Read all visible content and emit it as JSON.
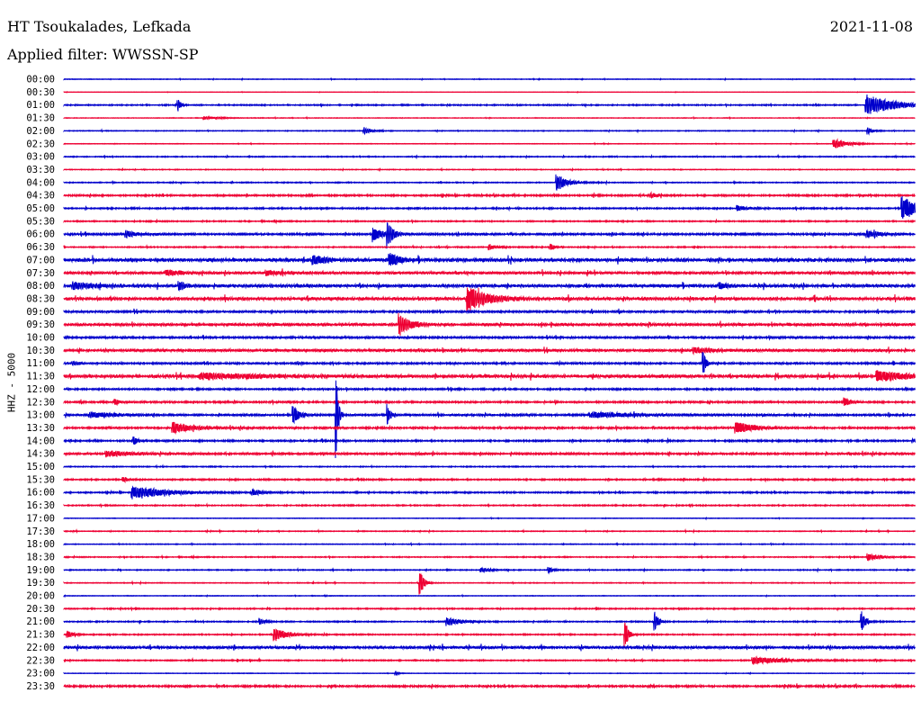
{
  "header": {
    "station": "HT Tsoukalades, Lefkada",
    "filter": "Applied filter: WWSSN-SP",
    "date": "2021-11-08"
  },
  "colors": {
    "even_hour": "#0000cc",
    "half_hour": "#ee0033",
    "text": "#000000"
  },
  "chart_data": {
    "type": "line",
    "title": "HT Tsoukalades, Lefkada",
    "ylabel": "HHZ - 5000",
    "row_labels": [
      "00:00",
      "00:30",
      "01:00",
      "01:30",
      "02:00",
      "02:30",
      "03:00",
      "03:30",
      "04:00",
      "04:30",
      "05:00",
      "05:30",
      "06:00",
      "06:30",
      "07:00",
      "07:30",
      "08:00",
      "08:30",
      "09:00",
      "09:30",
      "10:00",
      "10:30",
      "11:00",
      "11:30",
      "12:00",
      "12:30",
      "13:00",
      "13:30",
      "14:00",
      "14:30",
      "15:00",
      "15:30",
      "16:00",
      "16:30",
      "17:00",
      "17:30",
      "18:00",
      "18:30",
      "19:00",
      "19:30",
      "20:00",
      "20:30",
      "21:00",
      "21:30",
      "22:00",
      "22:30",
      "23:00",
      "23:30"
    ],
    "x_unit": "fraction of 30-minute trace",
    "noise_level": [
      0.3,
      0.2,
      0.6,
      0.3,
      0.4,
      0.3,
      0.5,
      0.4,
      0.5,
      0.8,
      0.7,
      0.6,
      1.0,
      0.6,
      1.6,
      1.2,
      1.4,
      1.4,
      1.0,
      1.3,
      1.0,
      1.2,
      0.9,
      1.4,
      0.8,
      0.9,
      1.0,
      0.9,
      0.8,
      1.0,
      0.5,
      0.7,
      0.7,
      0.6,
      0.3,
      0.4,
      0.4,
      0.5,
      0.5,
      0.4,
      0.3,
      0.6,
      0.6,
      0.6,
      1.2,
      0.6,
      0.3,
      0.9
    ],
    "events": [
      {
        "row": 2,
        "x": 0.134,
        "amp": 7,
        "dur": 0.004
      },
      {
        "row": 2,
        "x": 0.943,
        "amp": 12,
        "dur": 0.03
      },
      {
        "row": 3,
        "x": 0.165,
        "amp": 2,
        "dur": 0.02
      },
      {
        "row": 4,
        "x": 0.353,
        "amp": 4,
        "dur": 0.008
      },
      {
        "row": 4,
        "x": 0.945,
        "amp": 4,
        "dur": 0.006
      },
      {
        "row": 5,
        "x": 0.905,
        "amp": 6,
        "dur": 0.015
      },
      {
        "row": 8,
        "x": 0.579,
        "amp": 10,
        "dur": 0.012
      },
      {
        "row": 9,
        "x": 0.69,
        "amp": 3,
        "dur": 0.006
      },
      {
        "row": 10,
        "x": 0.792,
        "amp": 3,
        "dur": 0.01
      },
      {
        "row": 10,
        "x": 0.985,
        "amp": 14,
        "dur": 0.02
      },
      {
        "row": 12,
        "x": 0.073,
        "amp": 4,
        "dur": 0.012
      },
      {
        "row": 12,
        "x": 0.364,
        "amp": 8,
        "dur": 0.01
      },
      {
        "row": 12,
        "x": 0.38,
        "amp": 14,
        "dur": 0.006
      },
      {
        "row": 12,
        "x": 0.944,
        "amp": 4,
        "dur": 0.015
      },
      {
        "row": 13,
        "x": 0.5,
        "amp": 3,
        "dur": 0.01
      },
      {
        "row": 13,
        "x": 0.572,
        "amp": 4,
        "dur": 0.004
      },
      {
        "row": 14,
        "x": 0.293,
        "amp": 5,
        "dur": 0.015
      },
      {
        "row": 14,
        "x": 0.383,
        "amp": 8,
        "dur": 0.01
      },
      {
        "row": 15,
        "x": 0.12,
        "amp": 3,
        "dur": 0.02
      },
      {
        "row": 15,
        "x": 0.238,
        "amp": 3,
        "dur": 0.015
      },
      {
        "row": 16,
        "x": 0.012,
        "amp": 4,
        "dur": 0.02
      },
      {
        "row": 16,
        "x": 0.135,
        "amp": 6,
        "dur": 0.006
      },
      {
        "row": 16,
        "x": 0.77,
        "amp": 4,
        "dur": 0.008
      },
      {
        "row": 17,
        "x": 0.475,
        "amp": 16,
        "dur": 0.02
      },
      {
        "row": 19,
        "x": 0.394,
        "amp": 12,
        "dur": 0.012
      },
      {
        "row": 21,
        "x": 0.74,
        "amp": 3,
        "dur": 0.02
      },
      {
        "row": 22,
        "x": 0.01,
        "amp": 3,
        "dur": 0.006
      },
      {
        "row": 22,
        "x": 0.751,
        "amp": 16,
        "dur": 0.003
      },
      {
        "row": 23,
        "x": 0.16,
        "amp": 3,
        "dur": 0.08
      },
      {
        "row": 23,
        "x": 0.955,
        "amp": 6,
        "dur": 0.035
      },
      {
        "row": 25,
        "x": 0.06,
        "amp": 3,
        "dur": 0.006
      },
      {
        "row": 25,
        "x": 0.917,
        "amp": 6,
        "dur": 0.006
      },
      {
        "row": 26,
        "x": 0.031,
        "amp": 3,
        "dur": 0.03
      },
      {
        "row": 26,
        "x": 0.269,
        "amp": 14,
        "dur": 0.006
      },
      {
        "row": 26,
        "x": 0.32,
        "amp": 56,
        "dur": 0.002
      },
      {
        "row": 26,
        "x": 0.38,
        "amp": 15,
        "dur": 0.003
      },
      {
        "row": 26,
        "x": 0.62,
        "amp": 3,
        "dur": 0.05
      },
      {
        "row": 27,
        "x": 0.128,
        "amp": 6,
        "dur": 0.025
      },
      {
        "row": 27,
        "x": 0.79,
        "amp": 7,
        "dur": 0.02
      },
      {
        "row": 28,
        "x": 0.082,
        "amp": 6,
        "dur": 0.004
      },
      {
        "row": 29,
        "x": 0.05,
        "amp": 3,
        "dur": 0.03
      },
      {
        "row": 31,
        "x": 0.07,
        "amp": 3,
        "dur": 0.005
      },
      {
        "row": 32,
        "x": 0.08,
        "amp": 7,
        "dur": 0.04
      },
      {
        "row": 32,
        "x": 0.222,
        "amp": 3,
        "dur": 0.012
      },
      {
        "row": 37,
        "x": 0.945,
        "amp": 4,
        "dur": 0.015
      },
      {
        "row": 38,
        "x": 0.49,
        "amp": 3,
        "dur": 0.01
      },
      {
        "row": 38,
        "x": 0.57,
        "amp": 4,
        "dur": 0.004
      },
      {
        "row": 39,
        "x": 0.419,
        "amp": 14,
        "dur": 0.004
      },
      {
        "row": 42,
        "x": 0.23,
        "amp": 4,
        "dur": 0.005
      },
      {
        "row": 42,
        "x": 0.45,
        "amp": 5,
        "dur": 0.015
      },
      {
        "row": 42,
        "x": 0.694,
        "amp": 14,
        "dur": 0.004
      },
      {
        "row": 42,
        "x": 0.938,
        "amp": 12,
        "dur": 0.004
      },
      {
        "row": 43,
        "x": 0.004,
        "amp": 4,
        "dur": 0.006
      },
      {
        "row": 43,
        "x": 0.247,
        "amp": 8,
        "dur": 0.015
      },
      {
        "row": 43,
        "x": 0.66,
        "amp": 14,
        "dur": 0.004
      },
      {
        "row": 45,
        "x": 0.81,
        "amp": 4,
        "dur": 0.04
      },
      {
        "row": 46,
        "x": 0.39,
        "amp": 3,
        "dur": 0.003
      }
    ]
  }
}
